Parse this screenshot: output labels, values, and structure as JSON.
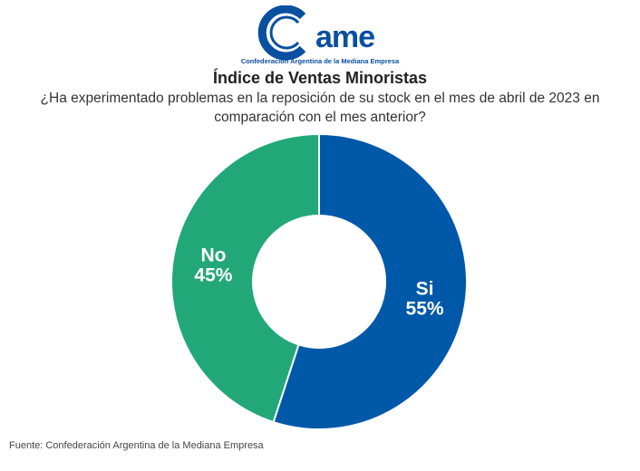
{
  "logo": {
    "wordmark": "came",
    "tagline": "Confederación Argentina de la Mediana Empresa",
    "color": "#0a4fa0"
  },
  "chart_data": {
    "type": "pie",
    "donut": true,
    "title": "Índice de Ventas Minoristas",
    "subtitle": "¿Ha experimentado problemas en la reposición de su stock en el mes de abril de 2023 en comparación con el mes anterior?",
    "categories": [
      "Si",
      "No"
    ],
    "values": [
      55,
      45
    ],
    "labels": [
      "55%",
      "45%"
    ],
    "colors": [
      "#0058a8",
      "#22a878"
    ]
  },
  "source": "Fuente: Confederación Argentina de la Mediana Empresa"
}
